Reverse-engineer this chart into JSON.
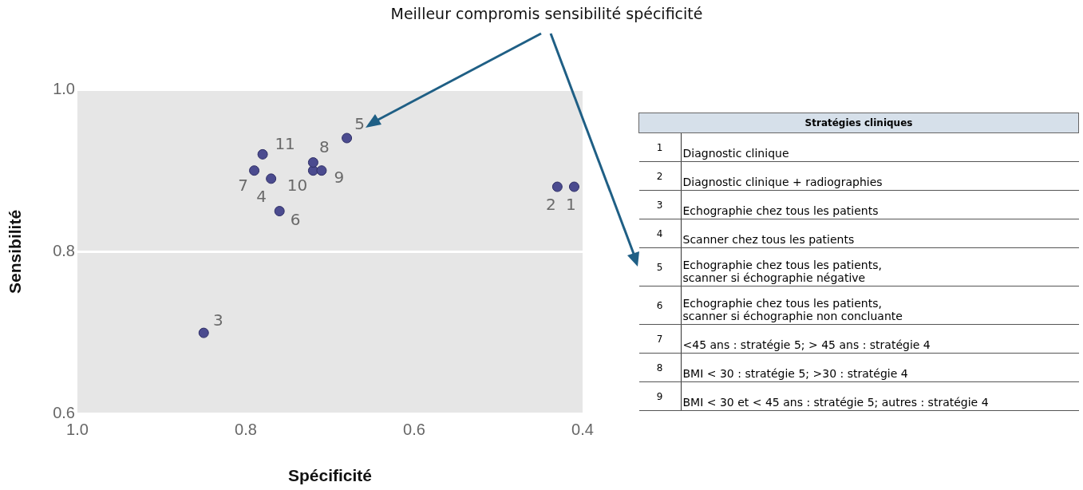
{
  "chart_data": {
    "type": "scatter",
    "xlabel": "Spécificité",
    "ylabel": "Sensibilité",
    "series": [
      {
        "name": "1",
        "color": "#4b4b8f",
        "x": [
          0.41
        ],
        "values": [
          0.88
        ]
      },
      {
        "name": "2",
        "color": "#4b4b8f",
        "x": [
          0.43
        ],
        "values": [
          0.88
        ]
      },
      {
        "name": "3",
        "color": "#4b4b8f",
        "x": [
          0.85
        ],
        "values": [
          0.7
        ]
      },
      {
        "name": "4",
        "color": "#4b4b8f",
        "x": [
          0.77
        ],
        "values": [
          0.89
        ]
      },
      {
        "name": "5",
        "color": "#4b4b8f",
        "x": [
          0.68
        ],
        "values": [
          0.94
        ]
      },
      {
        "name": "6",
        "color": "#4b4b8f",
        "x": [
          0.76
        ],
        "values": [
          0.85
        ]
      },
      {
        "name": "7",
        "color": "#4b4b8f",
        "x": [
          0.79
        ],
        "values": [
          0.9
        ]
      },
      {
        "name": "8",
        "color": "#4b4b8f",
        "x": [
          0.72
        ],
        "values": [
          0.91
        ]
      },
      {
        "name": "9",
        "color": "#4b4b8f",
        "x": [
          0.71
        ],
        "values": [
          0.9
        ]
      },
      {
        "name": "10",
        "color": "#4b4b8f",
        "x": [
          0.72
        ],
        "values": [
          0.9
        ]
      },
      {
        "name": "11",
        "color": "#4b4b8f",
        "x": [
          0.78
        ],
        "values": [
          0.92
        ]
      }
    ],
    "marker": "circle",
    "xlim": [
      1.0,
      0.4
    ],
    "xticks": [
      {
        "value": 1,
        "label": "1.0"
      },
      0.8,
      0.6,
      0.4
    ],
    "ylim": [
      0.6,
      1.0
    ],
    "yticks": [
      0.6,
      0.8,
      {
        "value": 1,
        "label": "1.0"
      }
    ],
    "grid": "y",
    "annotations": [
      "Meilleur compromis sensibilité spécificité",
      "Stratégies cliniques",
      "1",
      "Diagnostic clinique",
      "2",
      "Diagnostic clinique + radiographies",
      "3",
      "Echographie chez tous les patients",
      "4",
      "Scanner chez tous les patients",
      "5",
      "Echographie chez tous les patients,\n scanner si échographie négative",
      "6",
      "Echographie chez tous les patients,\nscanner si échographie non concluante",
      "7",
      "<45 ans : stratégie 5; > 45 ans : stratégie 4",
      "8",
      "BMI < 30 : stratégie 5; >30 :  stratégie 4",
      "9",
      "BMI < 30 et < 45 ans  : stratégie 5; autres :  stratégie 4"
    ]
  }
}
